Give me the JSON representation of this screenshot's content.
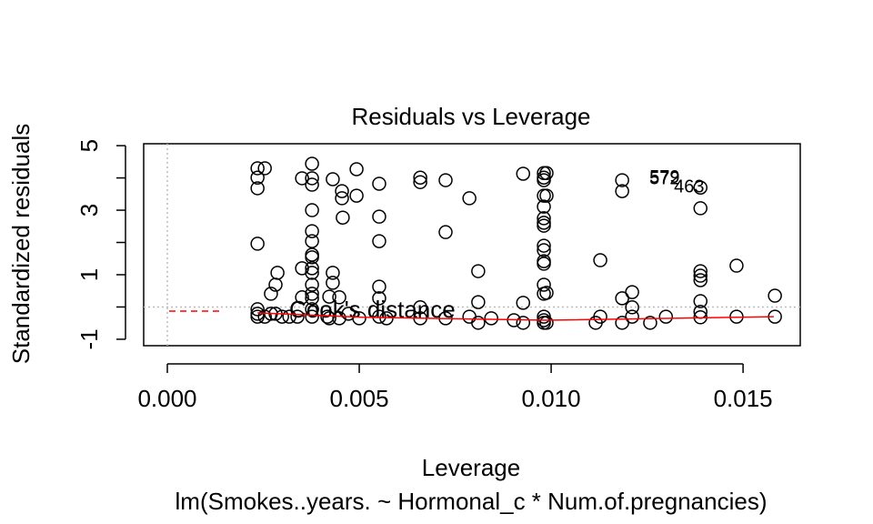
{
  "chart_data": {
    "type": "scatter",
    "title": "Residuals vs Leverage",
    "x_label": "Leverage",
    "y_label": "Standardized residuals",
    "subtitle": "lm(Smokes..years. ~ Hormonal_c * Num.of.pregnancies)",
    "xlim": [
      -0.000616,
      0.01649
    ],
    "ylim": [
      -1.2,
      5.06
    ],
    "xticks": [
      {
        "value": 0,
        "label": "0.000"
      },
      {
        "value": 0.005,
        "label": "0.005"
      },
      {
        "value": 0.01,
        "label": "0.010"
      },
      {
        "value": 0.015,
        "label": "0.015"
      }
    ],
    "yticks": [
      -1,
      1,
      3,
      5
    ],
    "yminor_ticks": [
      0,
      2,
      4
    ],
    "reference_lines": {
      "x": 0,
      "y": 0,
      "color": "#bbbbbb"
    },
    "point_color": "#000000",
    "x": [
      0.00235,
      0.00235,
      0.00235,
      0.00235,
      0.00235,
      0.00235,
      0.00235,
      0.00254,
      0.00254,
      0.0027,
      0.0027,
      0.00282,
      0.00282,
      0.00287,
      0.00299,
      0.00318,
      0.00339,
      0.00351,
      0.00351,
      0.00351,
      0.00377,
      0.00377,
      0.00377,
      0.00377,
      0.00377,
      0.00377,
      0.00377,
      0.00377,
      0.00377,
      0.00377,
      0.00377,
      0.00377,
      0.00377,
      0.00377,
      0.00377,
      0.00417,
      0.00422,
      0.00422,
      0.00431,
      0.00431,
      0.00431,
      0.00448,
      0.00448,
      0.00455,
      0.00455,
      0.00457,
      0.00472,
      0.00493,
      0.00493,
      0.005,
      0.00552,
      0.00552,
      0.00552,
      0.00552,
      0.00552,
      0.00552,
      0.00571,
      0.00659,
      0.00659,
      0.00659,
      0.00659,
      0.00725,
      0.00725,
      0.00725,
      0.00787,
      0.00787,
      0.0081,
      0.0081,
      0.0081,
      0.00844,
      0.00903,
      0.00927,
      0.00927,
      0.00927,
      0.00981,
      0.00981,
      0.00981,
      0.00981,
      0.00981,
      0.00981,
      0.00981,
      0.00981,
      0.00981,
      0.00981,
      0.00981,
      0.00981,
      0.00981,
      0.00981,
      0.00981,
      0.00981,
      0.00981,
      0.00988,
      0.00988,
      0.00988,
      0.00988,
      0.01116,
      0.01128,
      0.01128,
      0.01185,
      0.01185,
      0.01185,
      0.01185,
      0.01211,
      0.01211,
      0.01211,
      0.01258,
      0.01299,
      0.01389,
      0.01389,
      0.01389,
      0.01389,
      0.01389,
      0.01389,
      0.01389,
      0.01389,
      0.01483,
      0.01483,
      0.01583,
      0.01583
    ],
    "y": [
      4.3,
      4.01,
      3.68,
      1.96,
      -0.07,
      -0.21,
      -0.3,
      4.3,
      -0.3,
      0.41,
      -0.21,
      0.69,
      -0.21,
      1.06,
      -0.3,
      -0.3,
      -0.3,
      3.99,
      1.2,
      0.3,
      4.44,
      3.99,
      3.79,
      3.0,
      2.35,
      2.04,
      1.62,
      1.54,
      1.2,
      1.06,
      0.69,
      0.41,
      0.27,
      -0.07,
      -0.3,
      -0.3,
      0.32,
      -0.35,
      3.96,
      1.06,
      0.75,
      0.3,
      -0.35,
      3.59,
      3.37,
      2.77,
      -0.21,
      4.27,
      3.45,
      -0.35,
      3.82,
      2.8,
      2.04,
      0.63,
      0.27,
      -0.3,
      -0.35,
      4.01,
      3.87,
      -0.01,
      -0.35,
      3.93,
      2.32,
      -0.35,
      3.37,
      -0.3,
      1.11,
      0.15,
      -0.49,
      -0.35,
      -0.41,
      4.13,
      0.13,
      -0.49,
      4.15,
      4.01,
      3.93,
      3.45,
      3.11,
      2.75,
      2.61,
      2.52,
      1.9,
      1.76,
      1.42,
      1.34,
      0.69,
      0.41,
      -0.3,
      -0.41,
      -0.49,
      4.15,
      3.45,
      0.44,
      -0.49,
      -0.49,
      1.45,
      -0.3,
      3.93,
      3.59,
      0.27,
      -0.49,
      0.46,
      -0.01,
      -0.3,
      -0.49,
      -0.3,
      3.7,
      3.06,
      1.11,
      0.97,
      0.83,
      0.18,
      -0.15,
      -0.32,
      1.28,
      -0.3,
      0.35,
      -0.3
    ],
    "smooth": {
      "color": "#ff0000",
      "x": [
        0.00235,
        0.0051,
        0.0099,
        0.0158
      ],
      "y": [
        -0.18,
        -0.32,
        -0.41,
        -0.3
      ]
    },
    "annotations": [
      {
        "text": "579",
        "x": 0.01256,
        "y": 3.99
      },
      {
        "text": "572",
        "x": 0.01256,
        "y": 3.96
      },
      {
        "text": "463",
        "x": 0.0132,
        "y": 3.7
      }
    ],
    "legend": {
      "text": "Cook's distance",
      "position": "bottomleft",
      "color": "#ff0000"
    }
  }
}
